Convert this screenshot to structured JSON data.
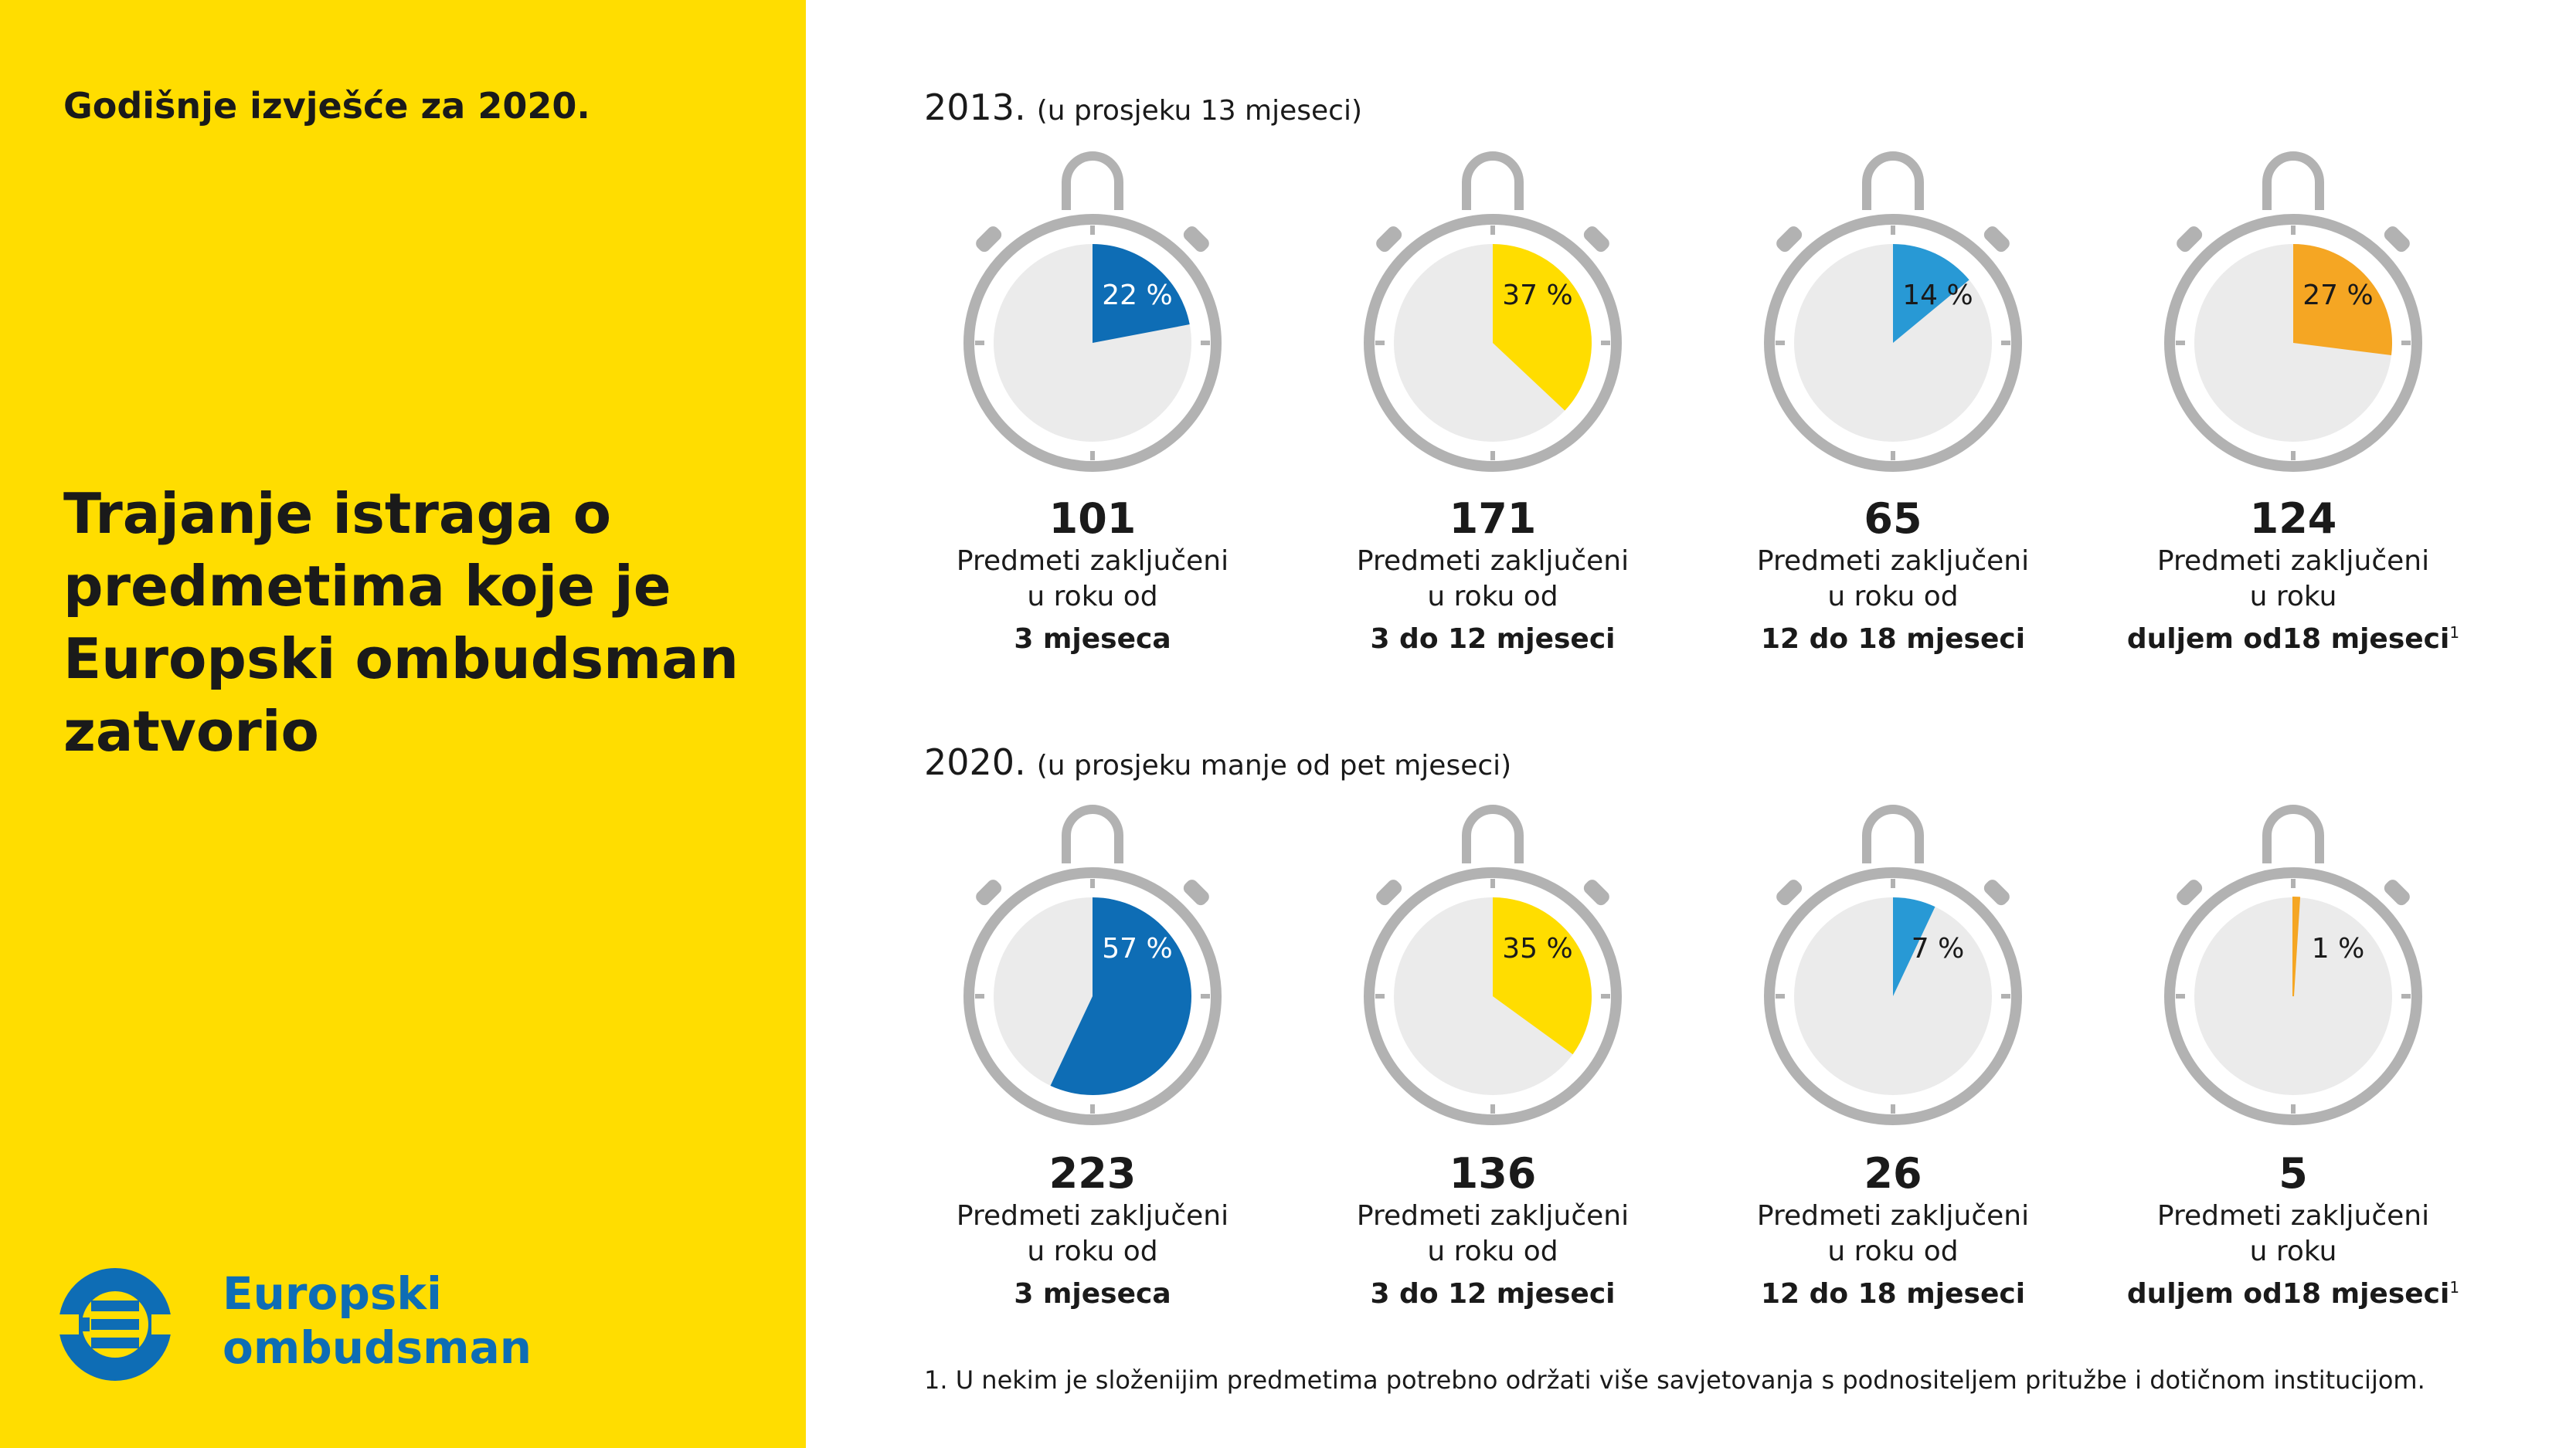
{
  "header": {
    "report_label": "Godišnje izvješće za 2020."
  },
  "title": {
    "lines": [
      "Trajanje istraga o",
      "predmetima koje je",
      "Europski ombudsman",
      "zatvorio"
    ]
  },
  "logo": {
    "line1": "Europski",
    "line2": "ombudsman",
    "icon": "eu-ombudsman-logo-icon"
  },
  "colors": {
    "blue_dark": "#0E6DB5",
    "yellow": "#FFDD00",
    "blue_light": "#2899D5",
    "orange": "#F5A623",
    "dial_bg": "#EBEBEB",
    "ring": "#B2B2B2"
  },
  "sections": [
    {
      "year": "2013.",
      "average_note": "(u prosjeku 13 mjeseci)",
      "panels": [
        {
          "count": "101",
          "pct_label": "22 %",
          "line1": "Predmeti zaključeni",
          "line2": "u roku od",
          "line3": "3 mjeseca",
          "footnote_mark": ""
        },
        {
          "count": "171",
          "pct_label": "37 %",
          "line1": "Predmeti zaključeni",
          "line2": "u roku od",
          "line3": "3 do 12 mjeseci",
          "footnote_mark": ""
        },
        {
          "count": "65",
          "pct_label": "14 %",
          "line1": "Predmeti zaključeni",
          "line2": "u roku od",
          "line3": "12 do 18 mjeseci",
          "footnote_mark": ""
        },
        {
          "count": "124",
          "pct_label": "27 %",
          "line1": "Predmeti zaključeni",
          "line2": "u roku",
          "line3": "duljem  od18 mjeseci",
          "footnote_mark": "1"
        }
      ]
    },
    {
      "year": "2020.",
      "average_note": "(u prosjeku manje od pet mjeseci)",
      "panels": [
        {
          "count": "223",
          "pct_label": "57 %",
          "line1": "Predmeti zaključeni",
          "line2": "u roku od",
          "line3": "3 mjeseca",
          "footnote_mark": ""
        },
        {
          "count": "136",
          "pct_label": "35 %",
          "line1": "Predmeti zaključeni",
          "line2": "u roku od",
          "line3": "3 do 12 mjeseci",
          "footnote_mark": ""
        },
        {
          "count": "26",
          "pct_label": "7 %",
          "line1": "Predmeti zaključeni",
          "line2": "u roku od",
          "line3": "12 do 18 mjeseci",
          "footnote_mark": ""
        },
        {
          "count": "5",
          "pct_label": "1 %",
          "line1": "Predmeti zaključeni",
          "line2": "u roku",
          "line3": "duljem  od18 mjeseci",
          "footnote_mark": "1"
        }
      ]
    }
  ],
  "footnote": "1. U nekim je složenijim predmetima potrebno održati više savjetovanja s podnositeljem pritužbe i dotičnom institucijom.",
  "chart_data": [
    {
      "type": "pie",
      "year": "2013.",
      "categories": [
        "3 mjeseca",
        "3 do 12 mjeseci",
        "12 do 18 mjeseci",
        "duljem od18 mjeseci"
      ],
      "values": [
        22,
        37,
        14,
        27
      ],
      "counts": [
        101,
        171,
        65,
        124
      ],
      "colors": [
        "#0E6DB5",
        "#FFDD00",
        "#2899D5",
        "#F5A623"
      ]
    },
    {
      "type": "pie",
      "year": "2020.",
      "categories": [
        "3 mjeseca",
        "3 do 12 mjeseci",
        "12 do 18 mjeseci",
        "duljem od18 mjeseci"
      ],
      "values": [
        57,
        35,
        7,
        1
      ],
      "counts": [
        223,
        136,
        26,
        5
      ],
      "colors": [
        "#0E6DB5",
        "#FFDD00",
        "#2899D5",
        "#F5A623"
      ]
    }
  ]
}
